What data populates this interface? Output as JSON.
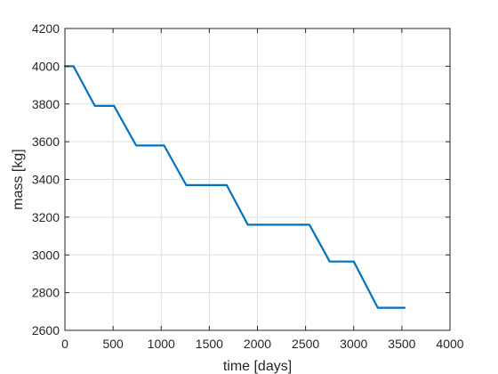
{
  "chart_data": {
    "type": "line",
    "xlabel": "time [days]",
    "ylabel": "mass [kg]",
    "xlim": [
      0,
      4000
    ],
    "ylim": [
      2600,
      4200
    ],
    "xticks": [
      0,
      500,
      1000,
      1500,
      2000,
      2500,
      3000,
      3500,
      4000
    ],
    "yticks": [
      2600,
      2800,
      3000,
      3200,
      3400,
      3600,
      3800,
      4000,
      4200
    ],
    "grid": true,
    "series": [
      {
        "color": "#0072BD",
        "x": [
          0,
          90,
          310,
          510,
          740,
          1030,
          1260,
          1680,
          1900,
          2540,
          2750,
          3000,
          3250,
          3530
        ],
        "y": [
          4000,
          4000,
          3790,
          3790,
          3580,
          3580,
          3370,
          3370,
          3160,
          3160,
          2965,
          2965,
          2720,
          2720
        ]
      }
    ]
  }
}
